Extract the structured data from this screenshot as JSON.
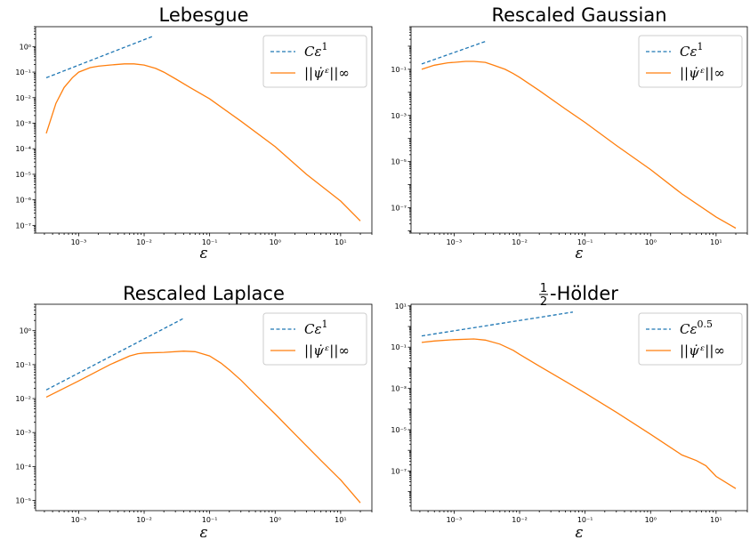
{
  "colors": {
    "ref": "#1f77b4",
    "curve": "#ff7f0e"
  },
  "chart_data": [
    {
      "type": "line",
      "title": "Lebesgue",
      "xlabel": "ε",
      "xscale": "log",
      "yscale": "log",
      "xlim": [
        0.00022,
        30
      ],
      "ylim": [
        5e-08,
        6
      ],
      "xticks": [
        {
          "v": 0.001,
          "label": "10⁻³"
        },
        {
          "v": 0.01,
          "label": "10⁻²"
        },
        {
          "v": 0.1,
          "label": "10⁻¹"
        },
        {
          "v": 1,
          "label": "10⁰"
        },
        {
          "v": 10,
          "label": "10¹"
        }
      ],
      "yticks": [
        {
          "v": 1e-07,
          "label": "10⁻⁷"
        },
        {
          "v": 1e-06,
          "label": "10⁻⁶"
        },
        {
          "v": 1e-05,
          "label": "10⁻⁵"
        },
        {
          "v": 0.0001,
          "label": "10⁻⁴"
        },
        {
          "v": 0.001,
          "label": "10⁻³"
        },
        {
          "v": 0.01,
          "label": "10⁻²"
        },
        {
          "v": 0.1,
          "label": "10⁻¹"
        },
        {
          "v": 1,
          "label": "10⁰"
        }
      ],
      "legend": {
        "position": "top-right",
        "ref_base": "Cε",
        "ref_exp": "1",
        "curve_label": "||ψ̇ᵋ||∞"
      },
      "series": [
        {
          "name": "Cε^1",
          "style": "dashed",
          "color": "#1f77b4",
          "x": [
            0.00032,
            0.014
          ],
          "y": [
            0.06,
            2.6
          ]
        },
        {
          "name": "||ψ̇^ε||∞",
          "style": "solid",
          "color": "#ff7f0e",
          "x": [
            0.00032,
            0.00045,
            0.0006,
            0.0008,
            0.001,
            0.0015,
            0.002,
            0.003,
            0.005,
            0.007,
            0.01,
            0.015,
            0.02,
            0.03,
            0.05,
            0.1,
            0.3,
            1,
            3,
            10,
            20
          ],
          "y": [
            0.0004,
            0.006,
            0.025,
            0.06,
            0.1,
            0.15,
            0.17,
            0.19,
            0.21,
            0.21,
            0.19,
            0.14,
            0.1,
            0.055,
            0.025,
            0.009,
            0.0012,
            0.00012,
            1e-05,
            9e-07,
            1.5e-07
          ]
        }
      ]
    },
    {
      "type": "line",
      "title": "Rescaled Gaussian",
      "xlabel": "ε",
      "xscale": "log",
      "yscale": "log",
      "xlim": [
        0.00022,
        30
      ],
      "ylim": [
        8e-09,
        7
      ],
      "xticks": [
        {
          "v": 0.001,
          "label": "10⁻³"
        },
        {
          "v": 0.01,
          "label": "10⁻²"
        },
        {
          "v": 0.1,
          "label": "10⁻¹"
        },
        {
          "v": 1,
          "label": "10⁰"
        },
        {
          "v": 10,
          "label": "10¹"
        }
      ],
      "yticks": [
        {
          "v": 1e-07,
          "label": "10⁻⁷"
        },
        {
          "v": 1e-05,
          "label": "10⁻⁵"
        },
        {
          "v": 0.001,
          "label": "10⁻³"
        },
        {
          "v": 0.1,
          "label": "10⁻¹"
        }
      ],
      "legend": {
        "position": "top-right",
        "ref_base": "Cε",
        "ref_exp": "1",
        "curve_label": "||ψ̇ᵋ||∞"
      },
      "series": [
        {
          "name": "Cε^1",
          "style": "dashed",
          "color": "#1f77b4",
          "x": [
            0.00032,
            0.003
          ],
          "y": [
            0.17,
            1.6
          ]
        },
        {
          "name": "||ψ̇^ε||∞",
          "style": "solid",
          "color": "#ff7f0e",
          "x": [
            0.00032,
            0.0005,
            0.0008,
            0.001,
            0.0015,
            0.002,
            0.003,
            0.004,
            0.006,
            0.008,
            0.01,
            0.02,
            0.05,
            0.1,
            0.3,
            1,
            3,
            10,
            20
          ],
          "y": [
            0.1,
            0.15,
            0.19,
            0.2,
            0.22,
            0.22,
            0.2,
            0.15,
            0.1,
            0.065,
            0.045,
            0.012,
            0.0019,
            0.0005,
            5e-05,
            4.5e-06,
            4e-07,
            4e-08,
            1.3e-08
          ]
        }
      ]
    },
    {
      "type": "line",
      "title": "Rescaled Laplace",
      "xlabel": "ε",
      "xscale": "log",
      "yscale": "log",
      "xlim": [
        0.00022,
        30
      ],
      "ylim": [
        5e-06,
        6
      ],
      "xticks": [
        {
          "v": 0.001,
          "label": "10⁻³"
        },
        {
          "v": 0.01,
          "label": "10⁻²"
        },
        {
          "v": 0.1,
          "label": "10⁻¹"
        },
        {
          "v": 1,
          "label": "10⁰"
        },
        {
          "v": 10,
          "label": "10¹"
        }
      ],
      "yticks": [
        {
          "v": 1e-05,
          "label": "10⁻⁵"
        },
        {
          "v": 0.0001,
          "label": "10⁻⁴"
        },
        {
          "v": 0.001,
          "label": "10⁻³"
        },
        {
          "v": 0.01,
          "label": "10⁻²"
        },
        {
          "v": 0.1,
          "label": "10⁻¹"
        },
        {
          "v": 1,
          "label": "10⁰"
        }
      ],
      "legend": {
        "position": "top-right",
        "ref_base": "Cε",
        "ref_exp": "1",
        "curve_label": "||ψ̇ᵋ||∞"
      },
      "series": [
        {
          "name": "Cε^1",
          "style": "dashed",
          "color": "#1f77b4",
          "x": [
            0.00032,
            0.04
          ],
          "y": [
            0.018,
            2.3
          ]
        },
        {
          "name": "||ψ̇^ε||∞",
          "style": "solid",
          "color": "#ff7f0e",
          "x": [
            0.00032,
            0.001,
            0.003,
            0.006,
            0.008,
            0.01,
            0.02,
            0.04,
            0.06,
            0.1,
            0.15,
            0.2,
            0.3,
            0.5,
            1,
            2,
            5,
            10,
            20
          ],
          "y": [
            0.011,
            0.033,
            0.1,
            0.18,
            0.21,
            0.22,
            0.23,
            0.25,
            0.24,
            0.18,
            0.11,
            0.07,
            0.035,
            0.013,
            0.0035,
            0.0009,
            0.00015,
            4e-05,
            8.5e-06
          ]
        }
      ]
    },
    {
      "type": "line",
      "title": "½-Hölder",
      "title_frac_num": "1",
      "title_frac_den": "2",
      "title_rest": "-Hölder",
      "xlabel": "ε",
      "xscale": "log",
      "yscale": "log",
      "xlim": [
        0.00022,
        30
      ],
      "ylim": [
        1.2e-09,
        12
      ],
      "xticks": [
        {
          "v": 0.001,
          "label": "10⁻³"
        },
        {
          "v": 0.01,
          "label": "10⁻²"
        },
        {
          "v": 0.1,
          "label": "10⁻¹"
        },
        {
          "v": 1,
          "label": "10⁰"
        },
        {
          "v": 10,
          "label": "10¹"
        }
      ],
      "yticks": [
        {
          "v": 1e-07,
          "label": "10⁻⁷"
        },
        {
          "v": 1e-05,
          "label": "10⁻⁵"
        },
        {
          "v": 0.001,
          "label": "10⁻³"
        },
        {
          "v": 0.1,
          "label": "10⁻¹"
        },
        {
          "v": 10,
          "label": "10¹"
        }
      ],
      "legend": {
        "position": "top-right",
        "ref_base": "Cε",
        "ref_exp": "0.5",
        "curve_label": "||ψ̇ᵋ||∞"
      },
      "series": [
        {
          "name": "Cε^0.5",
          "style": "dashed",
          "color": "#1f77b4",
          "x": [
            0.00032,
            0.065
          ],
          "y": [
            0.35,
            5.0
          ]
        },
        {
          "name": "||ψ̇^ε||∞",
          "style": "solid",
          "color": "#ff7f0e",
          "x": [
            0.00032,
            0.0005,
            0.001,
            0.002,
            0.003,
            0.005,
            0.008,
            0.01,
            0.02,
            0.05,
            0.1,
            0.3,
            1,
            3,
            5,
            7,
            10,
            20
          ],
          "y": [
            0.17,
            0.2,
            0.23,
            0.25,
            0.22,
            0.14,
            0.07,
            0.045,
            0.012,
            0.0022,
            0.0006,
            7e-05,
            6e-06,
            6e-07,
            3.2e-07,
            1.8e-07,
            5.5e-08,
            1.4e-08
          ]
        }
      ]
    }
  ]
}
